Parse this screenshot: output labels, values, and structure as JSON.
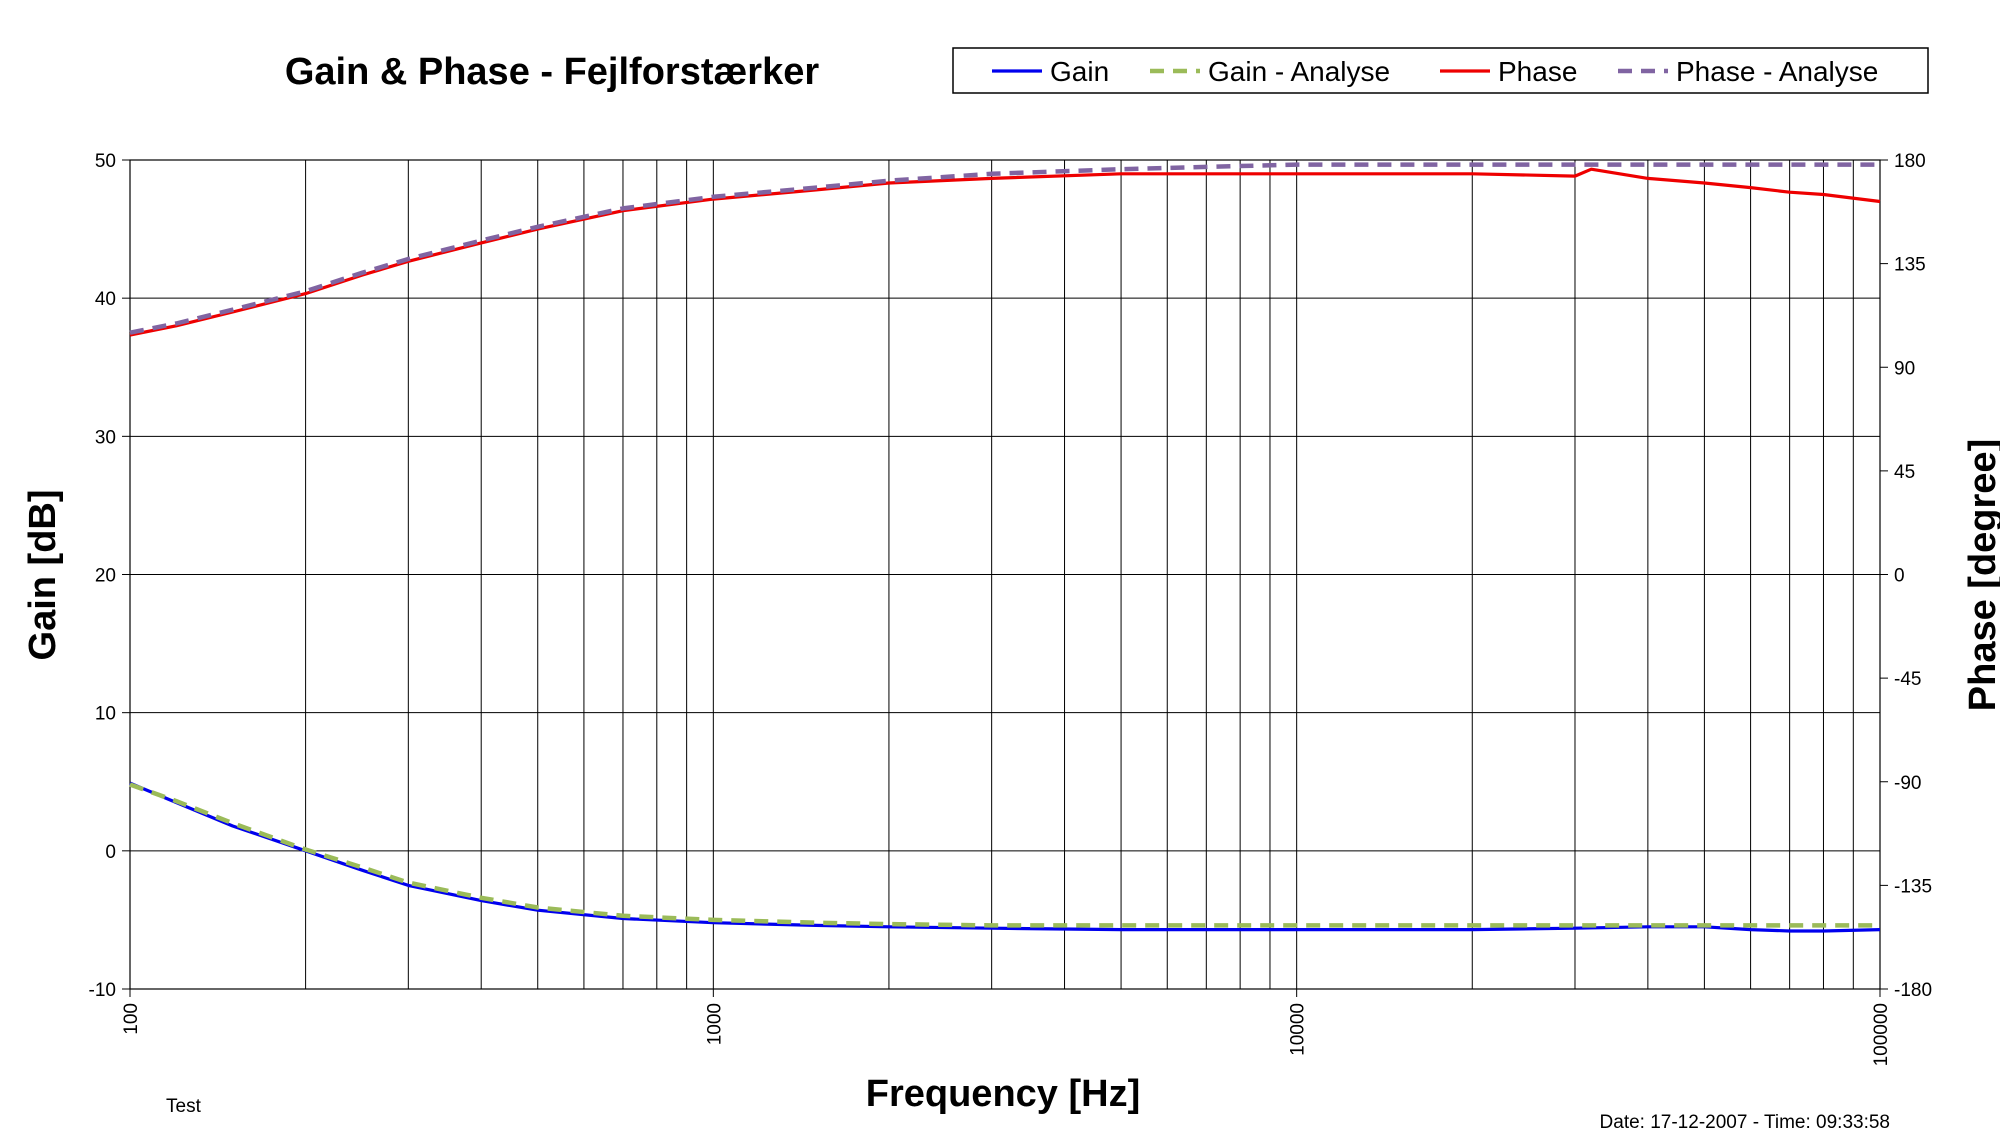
{
  "chart_data": {
    "type": "line",
    "title": "Gain & Phase - Fejlforstærker",
    "xlabel": "Frequency [Hz]",
    "ylabel": "Gain [dB]",
    "y2label": "Phase [degree]",
    "xscale": "log",
    "xlim": [
      100,
      100000
    ],
    "ylim": [
      -10,
      50
    ],
    "y2lim": [
      -180,
      180
    ],
    "x_ticks": [
      "100",
      "1000",
      "10000",
      "100000"
    ],
    "y_ticks": [
      -10,
      0,
      10,
      20,
      30,
      40,
      50
    ],
    "y2_ticks": [
      -180,
      -135,
      -90,
      -45,
      0,
      45,
      90,
      135,
      180
    ],
    "grid": true,
    "legend_position": "top-right",
    "footnote_left": "Test",
    "footnote_right": "Date: 17-12-2007 - Time: 09:33:58",
    "series": [
      {
        "name": "Gain",
        "axis": "left",
        "color": "#0000ee",
        "style": "solid",
        "x": [
          100,
          120,
          150,
          200,
          250,
          300,
          400,
          500,
          700,
          1000,
          1500,
          2000,
          3000,
          5000,
          7000,
          10000,
          20000,
          30000,
          40000,
          50000,
          60000,
          70000,
          80000,
          100000
        ],
        "y": [
          4.9,
          3.5,
          1.8,
          0.0,
          -1.4,
          -2.5,
          -3.6,
          -4.3,
          -4.9,
          -5.2,
          -5.4,
          -5.5,
          -5.6,
          -5.7,
          -5.7,
          -5.7,
          -5.7,
          -5.6,
          -5.5,
          -5.5,
          -5.7,
          -5.8,
          -5.8,
          -5.7
        ]
      },
      {
        "name": "Gain - Analyse",
        "axis": "left",
        "color": "#9bbb59",
        "style": "dashed",
        "x": [
          100,
          120,
          150,
          200,
          250,
          300,
          400,
          500,
          700,
          1000,
          1500,
          2000,
          3000,
          5000,
          7000,
          10000,
          20000,
          30000,
          40000,
          50000,
          60000,
          70000,
          80000,
          100000
        ],
        "y": [
          4.8,
          3.6,
          2.0,
          0.1,
          -1.2,
          -2.3,
          -3.4,
          -4.1,
          -4.7,
          -5.0,
          -5.2,
          -5.3,
          -5.4,
          -5.4,
          -5.4,
          -5.4,
          -5.4,
          -5.4,
          -5.4,
          -5.4,
          -5.4,
          -5.4,
          -5.4,
          -5.4
        ]
      },
      {
        "name": "Phase",
        "axis": "right",
        "color": "#ee0000",
        "style": "solid",
        "x": [
          100,
          120,
          150,
          200,
          250,
          300,
          400,
          500,
          700,
          1000,
          1500,
          2000,
          3000,
          5000,
          7000,
          10000,
          20000,
          30000,
          32000,
          40000,
          50000,
          60000,
          70000,
          80000,
          100000
        ],
        "y": [
          104,
          108,
          114,
          122,
          130,
          136,
          144,
          150,
          158,
          163,
          167,
          170,
          172,
          174,
          174,
          174,
          174,
          173,
          176,
          172,
          170,
          168,
          166,
          165,
          162
        ]
      },
      {
        "name": "Phase - Analyse",
        "axis": "right",
        "color": "#8064a2",
        "style": "dashed",
        "x": [
          100,
          120,
          150,
          200,
          250,
          300,
          400,
          500,
          700,
          1000,
          1500,
          2000,
          3000,
          5000,
          7000,
          10000,
          20000,
          30000,
          40000,
          50000,
          60000,
          70000,
          80000,
          100000
        ],
        "y": [
          105,
          109,
          115,
          123,
          131,
          137,
          145,
          151,
          159,
          164,
          168,
          171,
          174,
          176,
          177,
          178,
          178,
          178,
          178,
          178,
          178,
          178,
          178,
          178
        ]
      }
    ]
  }
}
